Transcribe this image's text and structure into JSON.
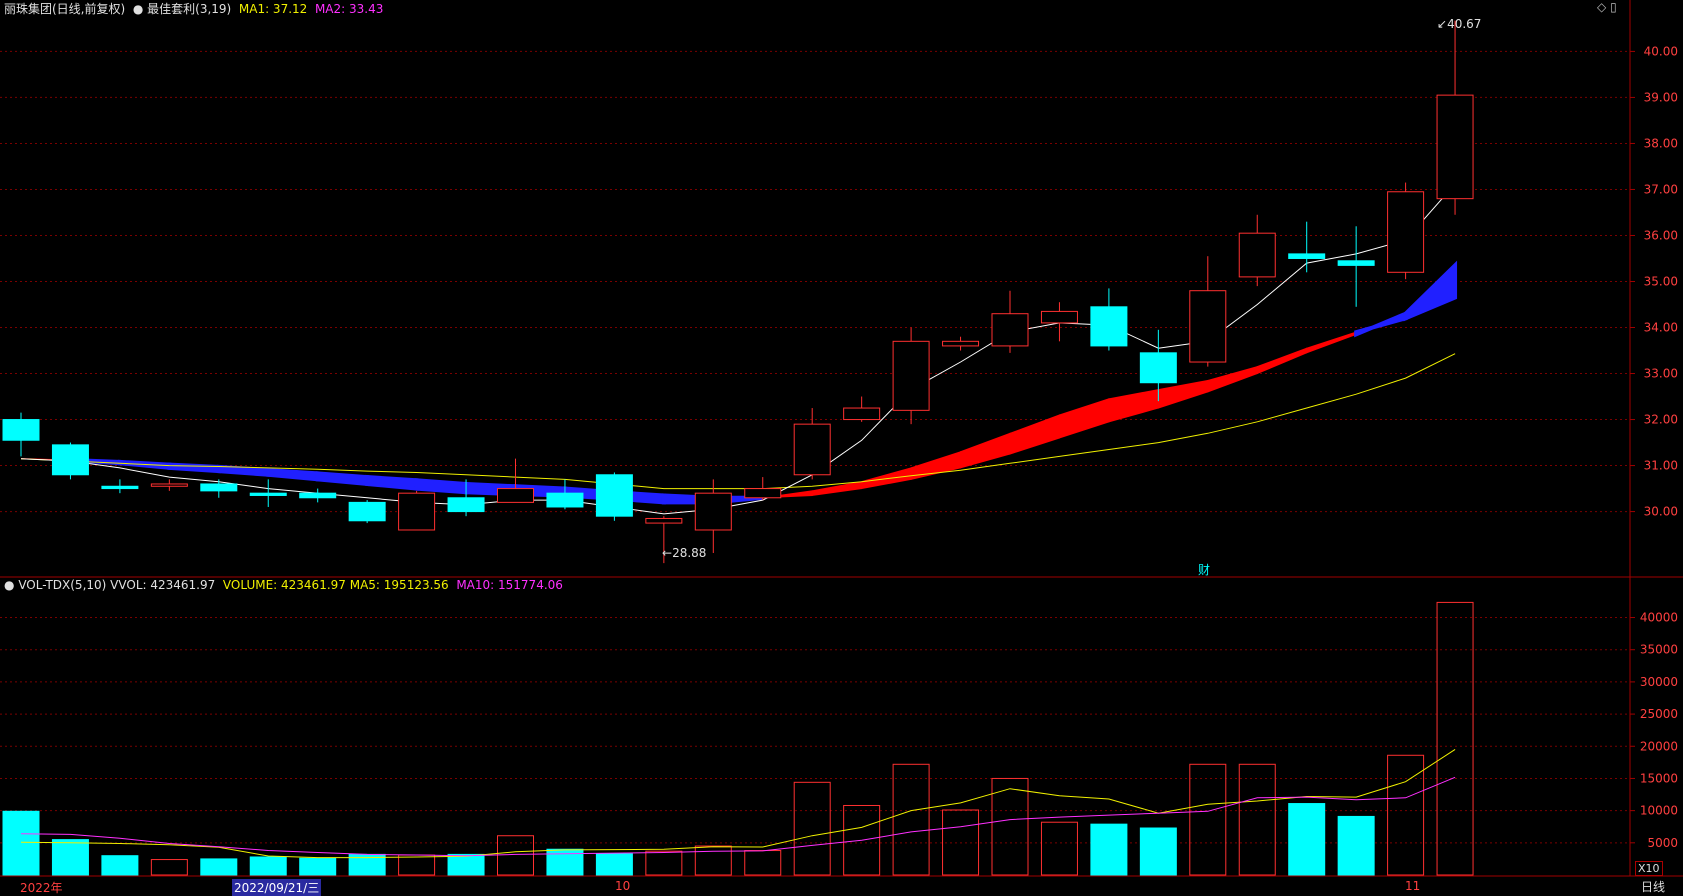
{
  "header": {
    "title": "丽珠集团(日线,前复权)",
    "indicator": "最佳套利(3,19)",
    "ma1": "MA1: 37.12",
    "ma2": "MA2: 33.43"
  },
  "vol_header": {
    "name": "VOL-TDX(5,10)",
    "vvol": "VVOL: 423461.97",
    "volume": "VOLUME: 423461.97",
    "ma5": "MA5: 195123.56",
    "ma10": "MA10: 151774.06"
  },
  "markers": {
    "high": "40.67",
    "low": "28.88",
    "fin": "财"
  },
  "x_labels": [
    "2022年",
    "2022/09/21/三",
    "10",
    "11"
  ],
  "period": "日线",
  "vol_unit": "X10",
  "colors": {
    "up": "#ff3030",
    "down": "#00ffff",
    "grid": "#7a0000",
    "ma1": "#ffffff",
    "ma_yellow": "#f0f000",
    "ma_magenta": "#ff30ff",
    "band_up": "#ff0000",
    "band_down": "#2020ff"
  },
  "chart_data": [
    {
      "type": "candlestick",
      "title": "丽珠集团(日线,前复权)",
      "ylim": [
        28.6,
        40.9
      ],
      "yticks": [
        30,
        31,
        32,
        33,
        34,
        35,
        36,
        37,
        38,
        39,
        40
      ],
      "ytick_labels": [
        "30.00",
        "31.00",
        "32.00",
        "33.00",
        "34.00",
        "35.00",
        "36.00",
        "37.00",
        "38.00",
        "39.00",
        "40.00"
      ],
      "candles": [
        {
          "o": 32.0,
          "c": 31.55,
          "h": 32.15,
          "l": 31.2
        },
        {
          "o": 31.45,
          "c": 30.8,
          "h": 31.5,
          "l": 30.7
        },
        {
          "o": 30.55,
          "c": 30.5,
          "h": 30.7,
          "l": 30.4
        },
        {
          "o": 30.55,
          "c": 30.6,
          "h": 30.7,
          "l": 30.45
        },
        {
          "o": 30.6,
          "c": 30.45,
          "h": 30.7,
          "l": 30.3
        },
        {
          "o": 30.4,
          "c": 30.35,
          "h": 30.7,
          "l": 30.1
        },
        {
          "o": 30.4,
          "c": 30.3,
          "h": 30.5,
          "l": 30.2
        },
        {
          "o": 30.2,
          "c": 29.8,
          "h": 30.25,
          "l": 29.75
        },
        {
          "o": 29.6,
          "c": 30.4,
          "h": 30.45,
          "l": 29.6
        },
        {
          "o": 30.3,
          "c": 30.0,
          "h": 30.7,
          "l": 29.9
        },
        {
          "o": 30.2,
          "c": 30.5,
          "h": 31.15,
          "l": 30.2
        },
        {
          "o": 30.4,
          "c": 30.1,
          "h": 30.7,
          "l": 30.05
        },
        {
          "o": 30.8,
          "c": 29.9,
          "h": 30.85,
          "l": 29.8
        },
        {
          "o": 29.75,
          "c": 29.85,
          "h": 29.9,
          "l": 28.88
        },
        {
          "o": 29.6,
          "c": 30.4,
          "h": 30.7,
          "l": 29.1
        },
        {
          "o": 30.3,
          "c": 30.5,
          "h": 30.75,
          "l": 30.25
        },
        {
          "o": 30.8,
          "c": 31.9,
          "h": 32.25,
          "l": 30.7
        },
        {
          "o": 32.0,
          "c": 32.25,
          "h": 32.5,
          "l": 31.95
        },
        {
          "o": 32.2,
          "c": 33.7,
          "h": 34.0,
          "l": 31.9
        },
        {
          "o": 33.6,
          "c": 33.7,
          "h": 33.8,
          "l": 33.5
        },
        {
          "o": 33.6,
          "c": 34.3,
          "h": 34.8,
          "l": 33.45
        },
        {
          "o": 34.1,
          "c": 34.35,
          "h": 34.55,
          "l": 33.7
        },
        {
          "o": 34.45,
          "c": 33.6,
          "h": 34.85,
          "l": 33.5
        },
        {
          "o": 33.45,
          "c": 32.8,
          "h": 33.95,
          "l": 32.4
        },
        {
          "o": 33.25,
          "c": 34.8,
          "h": 35.55,
          "l": 33.15
        },
        {
          "o": 35.1,
          "c": 36.05,
          "h": 36.45,
          "l": 34.9
        },
        {
          "o": 35.6,
          "c": 35.5,
          "h": 36.3,
          "l": 35.2
        },
        {
          "o": 35.45,
          "c": 35.35,
          "h": 36.2,
          "l": 34.45
        },
        {
          "o": 35.2,
          "c": 36.95,
          "h": 37.15,
          "l": 35.05
        },
        {
          "o": 36.8,
          "c": 39.05,
          "h": 40.67,
          "l": 36.45
        }
      ],
      "ma_white": [
        31.15,
        31.1,
        30.95,
        30.75,
        30.65,
        30.5,
        30.4,
        30.3,
        30.2,
        30.15,
        30.25,
        30.25,
        30.1,
        29.95,
        30.05,
        30.25,
        30.8,
        31.55,
        32.65,
        33.25,
        33.9,
        34.1,
        34.05,
        33.55,
        33.7,
        34.5,
        35.4,
        35.6,
        35.9,
        37.12
      ],
      "ma_yellow": [
        31.15,
        31.1,
        31.05,
        31.0,
        30.98,
        30.95,
        30.92,
        30.88,
        30.85,
        30.8,
        30.75,
        30.7,
        30.6,
        30.5,
        30.5,
        30.5,
        30.55,
        30.65,
        30.78,
        30.9,
        31.05,
        31.2,
        31.35,
        31.5,
        31.7,
        31.95,
        32.25,
        32.55,
        32.9,
        33.43
      ],
      "band_fast": [
        31.15,
        31.12,
        31.05,
        30.95,
        30.88,
        30.8,
        30.7,
        30.6,
        30.5,
        30.42,
        30.38,
        30.35,
        30.28,
        30.2,
        30.2,
        30.3,
        30.45,
        30.65,
        30.95,
        31.3,
        31.7,
        32.1,
        32.45,
        32.65,
        32.85,
        33.15,
        33.55,
        33.9,
        34.2,
        34.65
      ],
      "band_slow": [
        31.15,
        31.12,
        31.08,
        31.02,
        30.97,
        30.9,
        30.83,
        30.75,
        30.68,
        30.6,
        30.55,
        30.5,
        30.42,
        30.35,
        30.3,
        30.3,
        30.35,
        30.5,
        30.7,
        30.95,
        31.25,
        31.6,
        31.95,
        32.25,
        32.6,
        33.0,
        33.45,
        33.85,
        34.3,
        35.35
      ]
    },
    {
      "type": "bar",
      "title": "VOL-TDX(5,10)",
      "ylim": [
        0,
        43500
      ],
      "yticks": [
        5000,
        10000,
        15000,
        20000,
        25000,
        30000,
        35000,
        40000
      ],
      "ytick_labels": [
        "5000",
        "10000",
        "15000",
        "20000",
        "25000",
        "30000",
        "35000",
        "40000"
      ],
      "values": [
        9900,
        5500,
        3000,
        2400,
        2500,
        2800,
        2600,
        3200,
        3100,
        3200,
        6100,
        4000,
        3300,
        3700,
        4500,
        3800,
        14400,
        10800,
        17200,
        10100,
        15000,
        8200,
        7900,
        7300,
        17200,
        17200,
        11100,
        9100,
        18600,
        42350
      ],
      "ma5": [
        5100,
        5000,
        4900,
        4700,
        4300,
        2950,
        2700,
        2700,
        2800,
        2900,
        3600,
        3900,
        3950,
        4000,
        4400,
        4350,
        6100,
        7400,
        10000,
        11200,
        13400,
        12300,
        11800,
        9600,
        11000,
        11500,
        12200,
        12100,
        14500,
        19512
      ],
      "ma10": [
        6400,
        6300,
        5700,
        4900,
        4400,
        3800,
        3500,
        3200,
        3100,
        3000,
        3200,
        3300,
        3400,
        3500,
        3700,
        3750,
        4600,
        5400,
        6700,
        7500,
        8600,
        9000,
        9300,
        9600,
        9900,
        12000,
        12100,
        11700,
        12000,
        15177
      ]
    }
  ]
}
